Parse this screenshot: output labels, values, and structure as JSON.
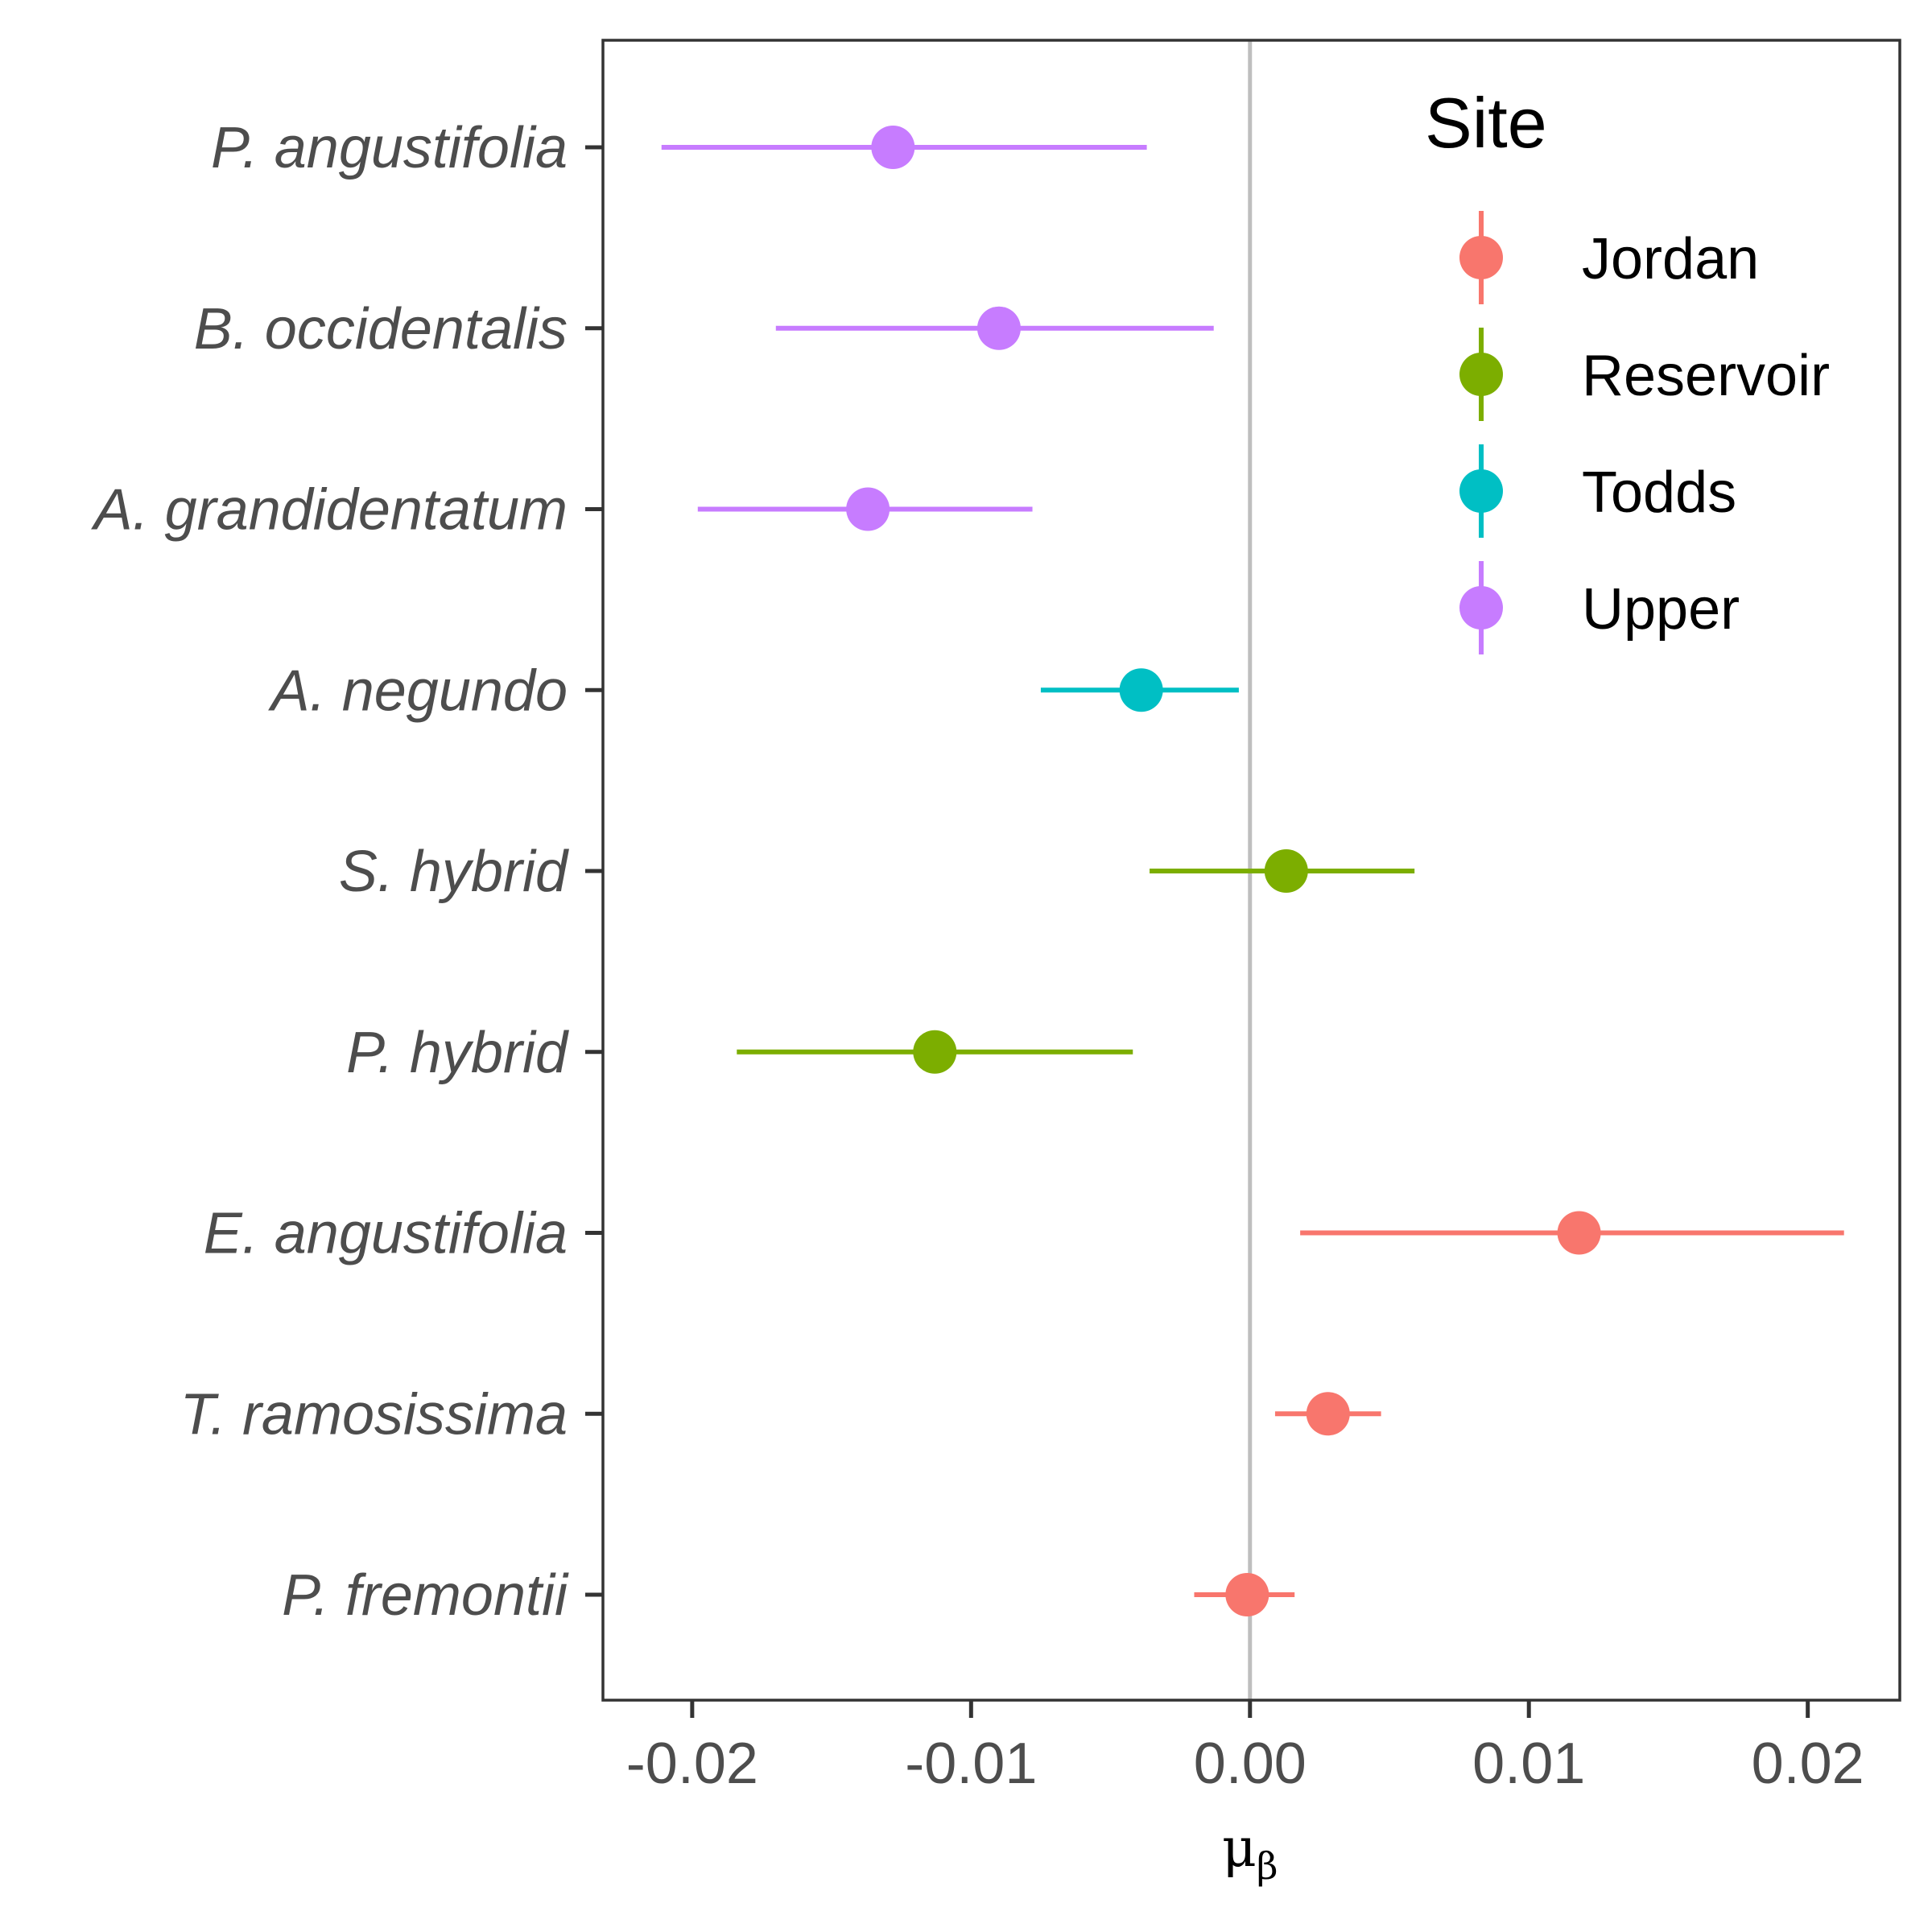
{
  "chart_data": {
    "type": "scatter",
    "subtype": "point-range",
    "title": "",
    "xlabel": "μ",
    "xlabel_subscript": "β",
    "ylabel": "",
    "xlim": [
      -0.0232,
      0.0233
    ],
    "xticks": [
      -0.02,
      -0.01,
      0.0,
      0.01,
      0.02
    ],
    "xtick_labels": [
      "-0.02",
      "-0.01",
      "0.00",
      "0.01",
      "0.02"
    ],
    "reference_line_x": 0,
    "grid": false,
    "categories": [
      "P. angustifolia",
      "B. occidentalis",
      "A. grandidentatum",
      "A. negundo",
      "S. hybrid",
      "P. hybrid",
      "E. angustifolia",
      "T. ramosissima",
      "P. fremontii"
    ],
    "points": [
      {
        "species": "P. angustifolia",
        "site": "Upper",
        "estimate": -0.0128,
        "lower": -0.0211,
        "upper": -0.0037
      },
      {
        "species": "B. occidentalis",
        "site": "Upper",
        "estimate": -0.009,
        "lower": -0.017,
        "upper": -0.0013
      },
      {
        "species": "A. grandidentatum",
        "site": "Upper",
        "estimate": -0.0137,
        "lower": -0.0198,
        "upper": -0.0078
      },
      {
        "species": "A. negundo",
        "site": "Todds",
        "estimate": -0.0039,
        "lower": -0.0075,
        "upper": -0.0004
      },
      {
        "species": "S. hybrid",
        "site": "Reservoir",
        "estimate": 0.0013,
        "lower": -0.0036,
        "upper": 0.0059
      },
      {
        "species": "P. hybrid",
        "site": "Reservoir",
        "estimate": -0.0113,
        "lower": -0.0184,
        "upper": -0.0042
      },
      {
        "species": "E. angustifolia",
        "site": "Jordan",
        "estimate": 0.0118,
        "lower": 0.0018,
        "upper": 0.0213
      },
      {
        "species": "T. ramosissima",
        "site": "Jordan",
        "estimate": 0.0028,
        "lower": 0.0009,
        "upper": 0.0047
      },
      {
        "species": "P. fremontii",
        "site": "Jordan",
        "estimate": -0.0001,
        "lower": -0.002,
        "upper": 0.0016
      }
    ],
    "legend": {
      "title": "Site",
      "placement": "top-right",
      "entries": [
        {
          "name": "Jordan",
          "color": "#F8766D"
        },
        {
          "name": "Reservoir",
          "color": "#7CAE00"
        },
        {
          "name": "Todds",
          "color": "#00BFC4"
        },
        {
          "name": "Upper",
          "color": "#C77CFF"
        }
      ]
    },
    "colors": {
      "panel_border": "#333333",
      "reference_line": "#BEBEBE",
      "tick_label": "#4D4D4D"
    }
  }
}
